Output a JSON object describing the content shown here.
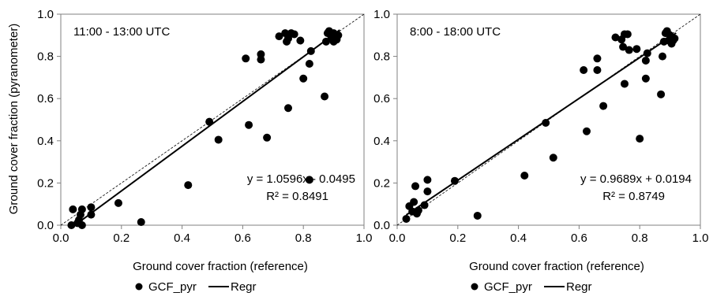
{
  "y_axis_title": "Ground cover fraction (pyranometer)",
  "legend": {
    "points_label": "GCF_pyr",
    "line_label": "Regr"
  },
  "colors": {
    "points": "#000000",
    "regression": "#000000",
    "identity": "#000000",
    "frame": "#808080"
  },
  "chart_data": [
    {
      "type": "scatter",
      "title": "11:00 - 13:00 UTC",
      "xlabel": "Ground cover fraction (reference)",
      "ylabel": "Ground cover fraction (pyranometer)",
      "xlim": [
        0,
        1.0
      ],
      "ylim": [
        0,
        1.0
      ],
      "xticks": [
        "0.0",
        "0.2",
        "0.4",
        "0.6",
        "0.8",
        "1.0"
      ],
      "yticks": [
        "0.0",
        "0.2",
        "0.4",
        "0.6",
        "0.8",
        "1.0"
      ],
      "grid": false,
      "legend_position": "bottom",
      "series": [
        {
          "name": "GCF_pyr",
          "points": [
            [
              0.035,
              0.0
            ],
            [
              0.04,
              0.075
            ],
            [
              0.055,
              0.01
            ],
            [
              0.06,
              0.025
            ],
            [
              0.065,
              0.05
            ],
            [
              0.07,
              0.075
            ],
            [
              0.07,
              0.0
            ],
            [
              0.1,
              0.085
            ],
            [
              0.1,
              0.05
            ],
            [
              0.19,
              0.105
            ],
            [
              0.265,
              0.015
            ],
            [
              0.42,
              0.19
            ],
            [
              0.49,
              0.49
            ],
            [
              0.52,
              0.405
            ],
            [
              0.61,
              0.79
            ],
            [
              0.62,
              0.475
            ],
            [
              0.66,
              0.81
            ],
            [
              0.66,
              0.785
            ],
            [
              0.68,
              0.415
            ],
            [
              0.72,
              0.895
            ],
            [
              0.74,
              0.91
            ],
            [
              0.745,
              0.87
            ],
            [
              0.75,
              0.885
            ],
            [
              0.75,
              0.555
            ],
            [
              0.76,
              0.91
            ],
            [
              0.77,
              0.905
            ],
            [
              0.79,
              0.875
            ],
            [
              0.8,
              0.695
            ],
            [
              0.82,
              0.765
            ],
            [
              0.825,
              0.825
            ],
            [
              0.82,
              0.215
            ],
            [
              0.87,
              0.61
            ],
            [
              0.875,
              0.87
            ],
            [
              0.88,
              0.91
            ],
            [
              0.885,
              0.92
            ],
            [
              0.89,
              0.9
            ],
            [
              0.895,
              0.885
            ],
            [
              0.9,
              0.91
            ],
            [
              0.91,
              0.88
            ],
            [
              0.91,
              0.895
            ],
            [
              0.915,
              0.9
            ],
            [
              0.9,
              0.87
            ]
          ]
        }
      ],
      "regression": {
        "name": "Regr",
        "slope": 1.0596,
        "intercept": -0.0495,
        "x_range": [
          0.06,
          0.92
        ]
      },
      "equation_text": "y = 1.0596x - 0.0495",
      "r2_text": "R² = 0.8491"
    },
    {
      "type": "scatter",
      "title": "8:00 - 18:00 UTC",
      "xlabel": "Ground cover fraction (reference)",
      "ylabel": "",
      "xlim": [
        0,
        1.0
      ],
      "ylim": [
        0,
        1.0
      ],
      "xticks": [
        "0.0",
        "0.2",
        "0.4",
        "0.6",
        "0.8",
        "1.0"
      ],
      "yticks": [
        "0.0",
        "0.2",
        "0.4",
        "0.6",
        "0.8",
        "1.0"
      ],
      "grid": false,
      "legend_position": "bottom",
      "series": [
        {
          "name": "GCF_pyr",
          "points": [
            [
              0.03,
              0.03
            ],
            [
              0.04,
              0.09
            ],
            [
              0.05,
              0.065
            ],
            [
              0.055,
              0.11
            ],
            [
              0.06,
              0.185
            ],
            [
              0.065,
              0.055
            ],
            [
              0.07,
              0.07
            ],
            [
              0.09,
              0.095
            ],
            [
              0.1,
              0.16
            ],
            [
              0.1,
              0.215
            ],
            [
              0.19,
              0.21
            ],
            [
              0.265,
              0.045
            ],
            [
              0.42,
              0.235
            ],
            [
              0.49,
              0.485
            ],
            [
              0.515,
              0.32
            ],
            [
              0.615,
              0.735
            ],
            [
              0.625,
              0.445
            ],
            [
              0.66,
              0.79
            ],
            [
              0.66,
              0.735
            ],
            [
              0.68,
              0.565
            ],
            [
              0.72,
              0.89
            ],
            [
              0.74,
              0.88
            ],
            [
              0.745,
              0.845
            ],
            [
              0.75,
              0.67
            ],
            [
              0.75,
              0.905
            ],
            [
              0.76,
              0.905
            ],
            [
              0.765,
              0.83
            ],
            [
              0.79,
              0.835
            ],
            [
              0.8,
              0.41
            ],
            [
              0.82,
              0.695
            ],
            [
              0.82,
              0.78
            ],
            [
              0.825,
              0.815
            ],
            [
              0.87,
              0.62
            ],
            [
              0.875,
              0.8
            ],
            [
              0.88,
              0.87
            ],
            [
              0.885,
              0.91
            ],
            [
              0.89,
              0.92
            ],
            [
              0.895,
              0.875
            ],
            [
              0.9,
              0.9
            ],
            [
              0.905,
              0.86
            ],
            [
              0.91,
              0.875
            ],
            [
              0.915,
              0.885
            ]
          ]
        }
      ],
      "regression": {
        "name": "Regr",
        "slope": 0.9689,
        "intercept": 0.0194,
        "x_range": [
          0.03,
          0.92
        ]
      },
      "equation_text": "y = 0.9689x + 0.0194",
      "r2_text": "R² = 0.8749"
    }
  ]
}
